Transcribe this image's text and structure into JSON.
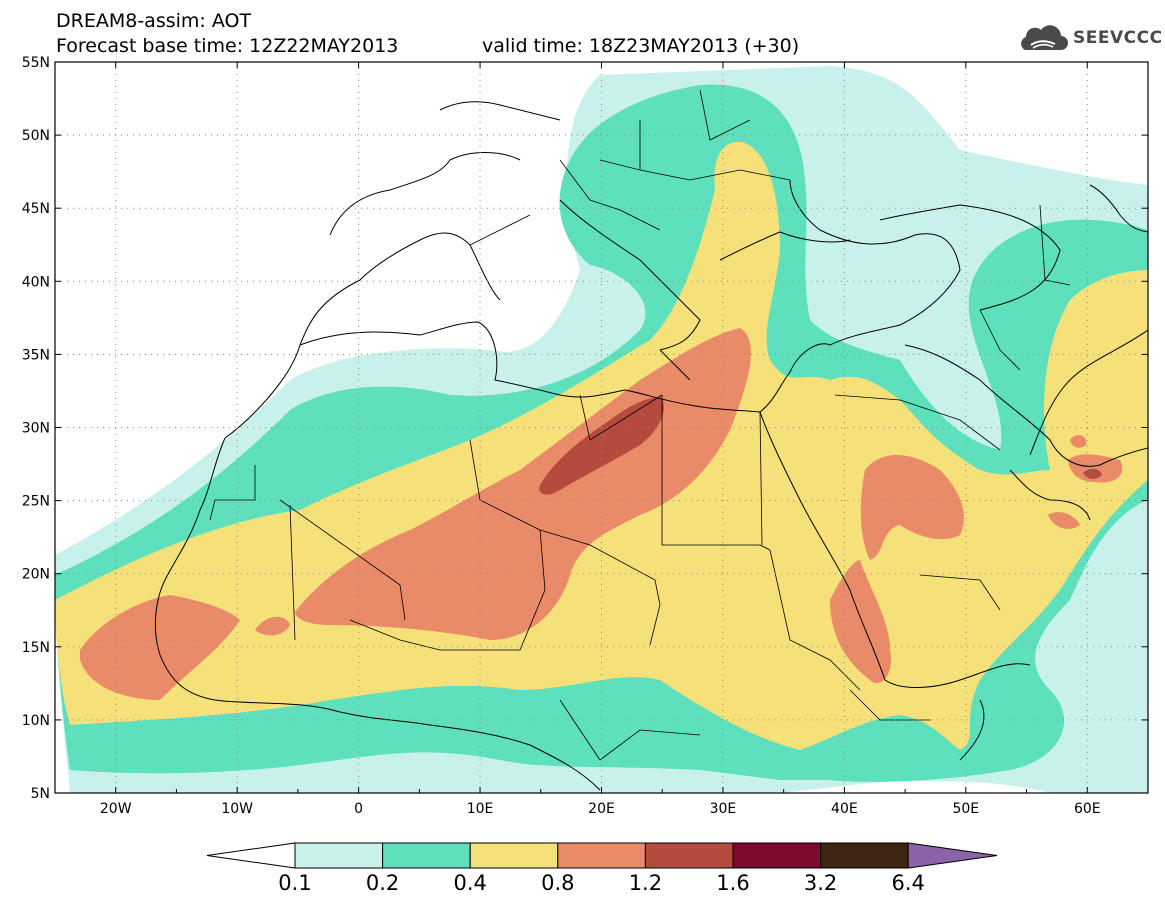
{
  "header": {
    "title": "DREAM8-assim: AOT",
    "base_time": "Forecast base time: 12Z22MAY2013",
    "valid_time": "valid time: 18Z23MAY2013 (+30)",
    "logo_text": "SEEVCCC"
  },
  "map": {
    "lon_range": [
      -25,
      65
    ],
    "lat_range": [
      5,
      55
    ],
    "lon_ticks": [
      "20W",
      "10W",
      "0",
      "10E",
      "20E",
      "30E",
      "40E",
      "50E",
      "60E"
    ],
    "lat_ticks": [
      "55N",
      "50N",
      "45N",
      "40N",
      "35N",
      "30N",
      "25N",
      "20N",
      "15N",
      "10N",
      "5N"
    ],
    "grid": true
  },
  "legend": {
    "levels": [
      "0.1",
      "0.2",
      "0.4",
      "0.8",
      "1.2",
      "1.6",
      "3.2",
      "6.4"
    ],
    "colors": {
      "below": "#ffffff",
      "c01": "#c8f1ec",
      "c02": "#5ee0bc",
      "c04": "#f5e07a",
      "c08": "#e98b68",
      "c12": "#b54b3f",
      "c16": "#7e0a2e",
      "c32": "#3e2414",
      "above": "#8b64a8"
    }
  }
}
